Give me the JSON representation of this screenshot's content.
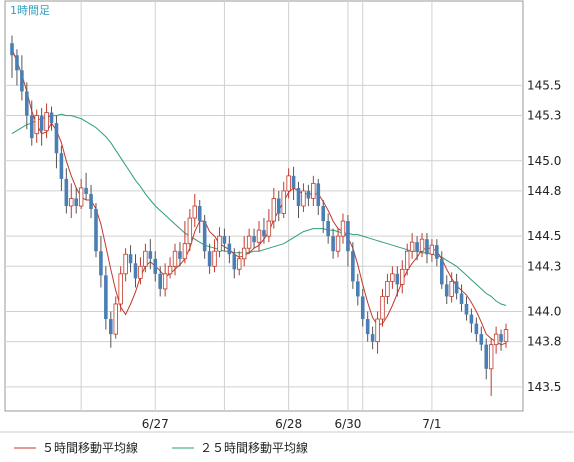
{
  "chart_data": {
    "type": "candlestick",
    "period_label": "1時間足",
    "y_ticks": [
      "145.5",
      "145.3",
      "145.0",
      "144.8",
      "144.5",
      "144.3",
      "144.0",
      "143.8",
      "143.5"
    ],
    "y_tick_values": [
      145.5,
      145.3,
      145.0,
      144.8,
      144.5,
      144.3,
      144.0,
      143.8,
      143.5
    ],
    "ylim": [
      143.34,
      146.06
    ],
    "x_tick_labels": [
      {
        "label": "6/27",
        "index": 29
      },
      {
        "label": "6/28",
        "index": 56
      },
      {
        "label": "6/30",
        "index": 68
      },
      {
        "label": "7/1",
        "index": 85
      }
    ],
    "grid": true,
    "legend": [
      {
        "name": "５時間移動平均線",
        "color": "#c0392b"
      },
      {
        "name": "２５時間移動平均線",
        "color": "#2e9e7a"
      }
    ],
    "colors": {
      "up": "#ffffff",
      "up_border": "#c0392b",
      "down": "#4a7fb5",
      "wick": "#555555",
      "ma5": "#c0392b",
      "ma25": "#2e9e7a",
      "grid": "#d0d0d0",
      "frame": "#999999",
      "period": "#2f9fbf"
    },
    "candles": [
      [
        145.78,
        145.7,
        145.83,
        145.55
      ],
      [
        145.7,
        145.6,
        145.74,
        145.5
      ],
      [
        145.6,
        145.46,
        145.7,
        145.4
      ],
      [
        145.46,
        145.3,
        145.52,
        145.21
      ],
      [
        145.3,
        145.15,
        145.4,
        145.1
      ],
      [
        145.18,
        145.3,
        145.34,
        145.12
      ],
      [
        145.3,
        145.2,
        145.35,
        145.1
      ],
      [
        145.2,
        145.32,
        145.38,
        145.15
      ],
      [
        145.32,
        145.25,
        145.36,
        145.2
      ],
      [
        145.25,
        145.05,
        145.3,
        144.95
      ],
      [
        145.05,
        144.88,
        145.1,
        144.8
      ],
      [
        144.88,
        144.7,
        144.95,
        144.65
      ],
      [
        144.7,
        144.75,
        144.85,
        144.62
      ],
      [
        144.75,
        144.7,
        144.82,
        144.65
      ],
      [
        144.7,
        144.82,
        144.88,
        144.68
      ],
      [
        144.82,
        144.78,
        144.92,
        144.74
      ],
      [
        144.78,
        144.68,
        144.84,
        144.62
      ],
      [
        144.68,
        144.4,
        144.72,
        144.36
      ],
      [
        144.4,
        144.24,
        144.5,
        144.16
      ],
      [
        144.24,
        143.95,
        144.3,
        143.88
      ],
      [
        143.95,
        143.85,
        144.0,
        143.76
      ],
      [
        143.85,
        144.05,
        144.1,
        143.82
      ],
      [
        144.05,
        144.25,
        144.3,
        144.0
      ],
      [
        144.25,
        144.38,
        144.42,
        144.2
      ],
      [
        144.38,
        144.32,
        144.44,
        144.26
      ],
      [
        144.32,
        144.22,
        144.38,
        144.16
      ],
      [
        144.22,
        144.3,
        144.36,
        144.18
      ],
      [
        144.3,
        144.4,
        144.45,
        144.26
      ],
      [
        144.4,
        144.35,
        144.48,
        144.28
      ],
      [
        144.35,
        144.25,
        144.4,
        144.2
      ],
      [
        144.25,
        144.15,
        144.3,
        144.1
      ],
      [
        144.15,
        144.25,
        144.32,
        144.1
      ],
      [
        144.25,
        144.3,
        144.36,
        144.22
      ],
      [
        144.3,
        144.4,
        144.45,
        144.24
      ],
      [
        144.4,
        144.35,
        144.46,
        144.3
      ],
      [
        144.35,
        144.45,
        144.6,
        144.32
      ],
      [
        144.45,
        144.62,
        144.68,
        144.4
      ],
      [
        144.62,
        144.7,
        144.78,
        144.56
      ],
      [
        144.7,
        144.6,
        144.74,
        144.52
      ],
      [
        144.6,
        144.4,
        144.64,
        144.35
      ],
      [
        144.4,
        144.3,
        144.45,
        144.25
      ],
      [
        144.3,
        144.4,
        144.48,
        144.26
      ],
      [
        144.4,
        144.5,
        144.56,
        144.36
      ],
      [
        144.5,
        144.45,
        144.55,
        144.4
      ],
      [
        144.45,
        144.38,
        144.5,
        144.32
      ],
      [
        144.38,
        144.28,
        144.42,
        144.22
      ],
      [
        144.28,
        144.35,
        144.4,
        144.24
      ],
      [
        144.35,
        144.42,
        144.5,
        144.3
      ],
      [
        144.42,
        144.5,
        144.55,
        144.38
      ],
      [
        144.5,
        144.46,
        144.55,
        144.42
      ],
      [
        144.46,
        144.54,
        144.6,
        144.4
      ],
      [
        144.54,
        144.5,
        144.62,
        144.45
      ],
      [
        144.5,
        144.6,
        144.68,
        144.46
      ],
      [
        144.6,
        144.75,
        144.82,
        144.55
      ],
      [
        144.75,
        144.65,
        144.8,
        144.6
      ],
      [
        144.65,
        144.8,
        144.86,
        144.62
      ],
      [
        144.8,
        144.9,
        144.95,
        144.75
      ],
      [
        144.9,
        144.82,
        144.96,
        144.74
      ],
      [
        144.82,
        144.7,
        144.86,
        144.62
      ],
      [
        144.7,
        144.8,
        144.85,
        144.66
      ],
      [
        144.8,
        144.75,
        144.84,
        144.7
      ],
      [
        144.75,
        144.85,
        144.9,
        144.7
      ],
      [
        144.85,
        144.7,
        144.88,
        144.64
      ],
      [
        144.7,
        144.6,
        144.74,
        144.52
      ],
      [
        144.6,
        144.5,
        144.65,
        144.45
      ],
      [
        144.5,
        144.4,
        144.55,
        144.35
      ],
      [
        144.4,
        144.5,
        144.55,
        144.36
      ],
      [
        144.5,
        144.6,
        144.65,
        144.45
      ],
      [
        144.6,
        144.4,
        144.64,
        144.3
      ],
      [
        144.4,
        144.2,
        144.46,
        144.15
      ],
      [
        144.2,
        144.1,
        144.25,
        144.04
      ],
      [
        144.1,
        143.95,
        144.15,
        143.9
      ],
      [
        143.95,
        143.85,
        144.0,
        143.8
      ],
      [
        143.85,
        143.8,
        143.9,
        143.75
      ],
      [
        143.8,
        143.95,
        144.0,
        143.72
      ],
      [
        143.95,
        144.1,
        144.15,
        143.9
      ],
      [
        144.1,
        144.2,
        144.25,
        144.05
      ],
      [
        144.2,
        144.25,
        144.3,
        144.15
      ],
      [
        144.25,
        144.18,
        144.3,
        144.1
      ],
      [
        144.18,
        144.28,
        144.34,
        144.12
      ],
      [
        144.28,
        144.4,
        144.45,
        144.24
      ],
      [
        144.4,
        144.46,
        144.52,
        144.35
      ],
      [
        144.46,
        144.4,
        144.5,
        144.34
      ],
      [
        144.4,
        144.48,
        144.52,
        144.36
      ],
      [
        144.48,
        144.38,
        144.52,
        144.32
      ],
      [
        144.38,
        144.44,
        144.48,
        144.33
      ],
      [
        144.44,
        144.35,
        144.48,
        144.3
      ],
      [
        144.35,
        144.18,
        144.4,
        144.15
      ],
      [
        144.18,
        144.1,
        144.24,
        144.05
      ],
      [
        144.1,
        144.2,
        144.26,
        144.06
      ],
      [
        144.2,
        144.12,
        144.25,
        144.08
      ],
      [
        144.12,
        144.05,
        144.18,
        144.0
      ],
      [
        144.05,
        143.98,
        144.1,
        143.94
      ],
      [
        143.98,
        143.92,
        144.02,
        143.86
      ],
      [
        143.92,
        143.85,
        143.96,
        143.8
      ],
      [
        143.85,
        143.78,
        143.9,
        143.74
      ],
      [
        143.78,
        143.62,
        143.82,
        143.55
      ],
      [
        143.62,
        143.78,
        143.82,
        143.44
      ],
      [
        143.78,
        143.85,
        143.9,
        143.72
      ],
      [
        143.85,
        143.8,
        143.88,
        143.74
      ],
      [
        143.8,
        143.88,
        143.92,
        143.76
      ]
    ],
    "ma5": [
      145.74,
      145.66,
      145.57,
      145.46,
      145.33,
      145.24,
      145.18,
      145.19,
      145.25,
      145.2,
      145.12,
      145.0,
      144.9,
      144.82,
      144.76,
      144.74,
      144.74,
      144.68,
      144.58,
      144.43,
      144.28,
      144.14,
      144.03,
      143.98,
      144.05,
      144.13,
      144.23,
      144.3,
      144.33,
      144.3,
      144.27,
      144.23,
      144.25,
      144.28,
      144.31,
      144.35,
      144.42,
      144.53,
      144.6,
      144.6,
      144.53,
      144.5,
      144.45,
      144.43,
      144.41,
      144.38,
      144.36,
      144.37,
      144.39,
      144.42,
      144.44,
      144.48,
      144.53,
      144.61,
      144.67,
      144.73,
      144.79,
      144.82,
      144.8,
      144.78,
      144.78,
      144.78,
      144.78,
      144.73,
      144.67,
      144.6,
      144.55,
      144.53,
      144.49,
      144.42,
      144.31,
      144.18,
      144.06,
      143.96,
      143.91,
      143.92,
      143.97,
      144.04,
      144.12,
      144.2,
      144.27,
      144.32,
      144.36,
      144.41,
      144.42,
      144.42,
      144.4,
      144.35,
      144.28,
      144.22,
      144.17,
      144.14,
      144.11,
      144.06,
      144.0,
      143.93,
      143.85,
      143.82,
      143.8,
      143.78,
      143.79
    ],
    "ma25": [
      145.18,
      145.2,
      145.22,
      145.24,
      145.25,
      145.27,
      145.28,
      145.29,
      145.3,
      145.3,
      145.31,
      145.3,
      145.3,
      145.29,
      145.28,
      145.26,
      145.24,
      145.22,
      145.19,
      145.16,
      145.12,
      145.07,
      145.02,
      144.97,
      144.92,
      144.87,
      144.83,
      144.78,
      144.74,
      144.7,
      144.67,
      144.64,
      144.61,
      144.58,
      144.55,
      144.52,
      144.5,
      144.48,
      144.46,
      144.44,
      144.43,
      144.42,
      144.41,
      144.4,
      144.4,
      144.39,
      144.39,
      144.39,
      144.39,
      144.4,
      144.4,
      144.41,
      144.42,
      144.43,
      144.44,
      144.45,
      144.47,
      144.49,
      144.51,
      144.53,
      144.54,
      144.55,
      144.55,
      144.55,
      144.54,
      144.54,
      144.53,
      144.52,
      144.52,
      144.51,
      144.51,
      144.5,
      144.49,
      144.48,
      144.47,
      144.46,
      144.45,
      144.44,
      144.43,
      144.42,
      144.41,
      144.4,
      144.4,
      144.39,
      144.39,
      144.38,
      144.37,
      144.36,
      144.34,
      144.32,
      144.3,
      144.27,
      144.24,
      144.21,
      144.18,
      144.15,
      144.12,
      144.1,
      144.07,
      144.05,
      144.04
    ]
  }
}
